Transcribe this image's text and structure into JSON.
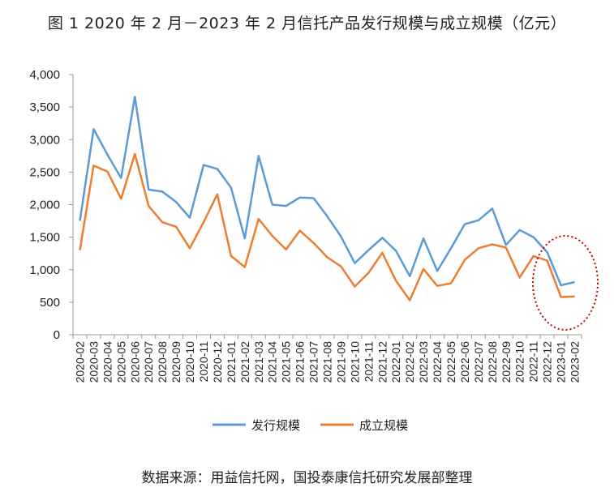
{
  "title": "图 1 2020 年 2 月－2023 年 2 月信托产品发行规模与成立规模（亿元）",
  "source": "数据来源：用益信托网，国投泰康信托研究发展部整理",
  "colors": {
    "issued": "#5b9bd5",
    "established": "#ed7d31",
    "highlight": "#d00000"
  },
  "chart_data": {
    "type": "line",
    "title": "图 1 2020 年 2 月－2023 年 2 月信托产品发行规模与成立规模（亿元）",
    "xlabel": "",
    "ylabel": "",
    "ylim": [
      0,
      4000
    ],
    "yticks": [
      0,
      500,
      1000,
      1500,
      2000,
      2500,
      3000,
      3500,
      4000
    ],
    "ytick_labels": [
      "0",
      "500",
      "1,000",
      "1,500",
      "2,000",
      "2,500",
      "3,000",
      "3,500",
      "4,000"
    ],
    "grid": false,
    "legend": "bottom",
    "categories": [
      "2020-02",
      "2020-03",
      "2020-04",
      "2020-05",
      "2020-06",
      "2020-07",
      "2020-08",
      "2020-09",
      "2020-10",
      "2020-11",
      "2020-12",
      "2021-01",
      "2021-02",
      "2021-03",
      "2021-04",
      "2021-05",
      "2021-06",
      "2021-07",
      "2021-08",
      "2021-09",
      "2021-10",
      "2021-11",
      "2021-12",
      "2022-01",
      "2022-02",
      "2022-03",
      "2022-04",
      "2022-05",
      "2022-06",
      "2022-07",
      "2022-08",
      "2022-09",
      "2022-10",
      "2022-11",
      "2022-12",
      "2023-01",
      "2023-02"
    ],
    "series": [
      {
        "name": "发行规模",
        "values": [
          1750,
          3160,
          2770,
          2410,
          3660,
          2230,
          2200,
          2040,
          1800,
          2610,
          2550,
          2260,
          1480,
          2750,
          2000,
          1980,
          2110,
          2100,
          1820,
          1510,
          1100,
          1300,
          1490,
          1290,
          900,
          1480,
          980,
          1330,
          1700,
          1760,
          1940,
          1380,
          1610,
          1500,
          1270,
          760,
          810
        ]
      },
      {
        "name": "成立规模",
        "values": [
          1300,
          2600,
          2510,
          2090,
          2780,
          1980,
          1730,
          1660,
          1330,
          1730,
          2160,
          1210,
          1040,
          1780,
          1520,
          1310,
          1600,
          1410,
          1190,
          1050,
          740,
          950,
          1260,
          830,
          530,
          1010,
          750,
          790,
          1150,
          1330,
          1390,
          1340,
          880,
          1210,
          1140,
          580,
          590
        ]
      }
    ]
  }
}
